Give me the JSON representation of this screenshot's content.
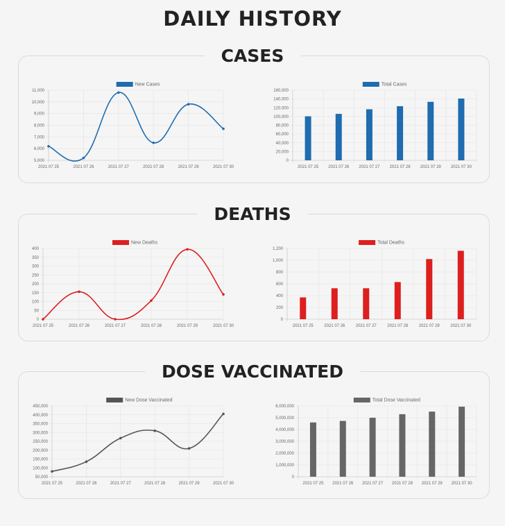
{
  "page_title": "DAILY HISTORY",
  "sections": [
    {
      "title": "CASES",
      "charts": [
        {
          "type": "line",
          "categories": [
            "2021 07 25",
            "2021 07 26",
            "2021 07 27",
            "2021 07 28",
            "2021 07 29",
            "2021 07 30"
          ],
          "series": [
            {
              "name": "New Cases",
              "values": [
                6200,
                5200,
                10800,
                6500,
                9800,
                7700
              ]
            }
          ],
          "ylim": [
            5000,
            11000
          ],
          "yticks": [
            {
              "v": 5000,
              "label": "5,000"
            },
            {
              "v": 6000,
              "label": "6,000"
            },
            {
              "v": 7000,
              "label": "7,000"
            },
            {
              "v": 8000,
              "label": "8,000"
            },
            {
              "v": 9000,
              "label": "9,000"
            },
            {
              "v": 10000,
              "label": "10,000"
            },
            {
              "v": 11000,
              "label": "11,000"
            }
          ],
          "color": "#1f6cb0"
        },
        {
          "type": "bar",
          "categories": [
            "2021 07 25",
            "2021 07 26",
            "2021 07 27",
            "2021 07 28",
            "2021 07 29",
            "2021 07 30"
          ],
          "series": [
            {
              "name": "Total Cases",
              "values": [
                100500,
                106000,
                116500,
                123500,
                133500,
                141000
              ]
            }
          ],
          "ylim": [
            0,
            160000
          ],
          "yticks": [
            {
              "v": 0,
              "label": "0"
            },
            {
              "v": 20000,
              "label": "20,000"
            },
            {
              "v": 40000,
              "label": "40,000"
            },
            {
              "v": 60000,
              "label": "60,000"
            },
            {
              "v": 80000,
              "label": "80,000"
            },
            {
              "v": 100000,
              "label": "100,000"
            },
            {
              "v": 120000,
              "label": "120,000"
            },
            {
              "v": 140000,
              "label": "140,000"
            },
            {
              "v": 160000,
              "label": "160,000"
            }
          ],
          "color": "#1f6cb0"
        }
      ]
    },
    {
      "title": "DEATHS",
      "charts": [
        {
          "type": "line",
          "categories": [
            "2021 07 25",
            "2021 07 26",
            "2021 07 27",
            "2021 07 28",
            "2021 07 29",
            "2021 07 30"
          ],
          "series": [
            {
              "name": "New Deaths",
              "values": [
                0,
                155,
                0,
                105,
                395,
                140
              ]
            }
          ],
          "ylim": [
            0,
            400
          ],
          "yticks": [
            {
              "v": 0,
              "label": "0"
            },
            {
              "v": 50,
              "label": "50"
            },
            {
              "v": 100,
              "label": "100"
            },
            {
              "v": 150,
              "label": "150"
            },
            {
              "v": 200,
              "label": "200"
            },
            {
              "v": 250,
              "label": "250"
            },
            {
              "v": 300,
              "label": "300"
            },
            {
              "v": 350,
              "label": "350"
            },
            {
              "v": 400,
              "label": "400"
            }
          ],
          "color": "#dd1f1f"
        },
        {
          "type": "bar",
          "categories": [
            "2021 07 25",
            "2021 07 26",
            "2021 07 27",
            "2021 07 28",
            "2021 07 29",
            "2021 07 30"
          ],
          "series": [
            {
              "name": "Total Deaths",
              "values": [
                370,
                525,
                525,
                630,
                1020,
                1160
              ]
            }
          ],
          "ylim": [
            0,
            1200
          ],
          "yticks": [
            {
              "v": 0,
              "label": "0"
            },
            {
              "v": 200,
              "label": "200"
            },
            {
              "v": 400,
              "label": "400"
            },
            {
              "v": 600,
              "label": "600"
            },
            {
              "v": 800,
              "label": "800"
            },
            {
              "v": 1000,
              "label": "1,000"
            },
            {
              "v": 1200,
              "label": "1,200"
            }
          ],
          "color": "#dd1f1f"
        }
      ]
    },
    {
      "title": "DOSE VACCINATED",
      "charts": [
        {
          "type": "line",
          "categories": [
            "2021 07 25",
            "2021 07 26",
            "2021 07 27",
            "2021 07 28",
            "2021 07 29",
            "2021 07 30"
          ],
          "series": [
            {
              "name": "New Dose Vaccinated",
              "values": [
                80000,
                135000,
                268000,
                310000,
                210000,
                405000
              ]
            }
          ],
          "ylim": [
            50000,
            450000
          ],
          "yticks": [
            {
              "v": 50000,
              "label": "50,000"
            },
            {
              "v": 100000,
              "label": "100,000"
            },
            {
              "v": 150000,
              "label": "150,000"
            },
            {
              "v": 200000,
              "label": "200,000"
            },
            {
              "v": 250000,
              "label": "250,000"
            },
            {
              "v": 300000,
              "label": "300,000"
            },
            {
              "v": 350000,
              "label": "350,000"
            },
            {
              "v": 400000,
              "label": "400,000"
            },
            {
              "v": 450000,
              "label": "450,000"
            }
          ],
          "color": "#555555"
        },
        {
          "type": "bar",
          "categories": [
            "2021 07 25",
            "2021 07 26",
            "2021 07 27",
            "2021 07 28",
            "2021 07 29",
            "2021 07 30"
          ],
          "series": [
            {
              "name": "Total Dose Vaccinated",
              "values": [
                4600000,
                4730000,
                5000000,
                5300000,
                5520000,
                5940000
              ]
            }
          ],
          "ylim": [
            0,
            6000000
          ],
          "yticks": [
            {
              "v": 0,
              "label": "0"
            },
            {
              "v": 1000000,
              "label": "1,000,000"
            },
            {
              "v": 2000000,
              "label": "2,000,000"
            },
            {
              "v": 3000000,
              "label": "3,000,000"
            },
            {
              "v": 4000000,
              "label": "4,000,000"
            },
            {
              "v": 5000000,
              "label": "5,000,000"
            },
            {
              "v": 6000000,
              "label": "6,000,000"
            }
          ],
          "color": "#666666"
        }
      ]
    }
  ],
  "chart_data": [
    {
      "type": "line",
      "title": "",
      "categories": [
        "2021 07 25",
        "2021 07 26",
        "2021 07 27",
        "2021 07 28",
        "2021 07 29",
        "2021 07 30"
      ],
      "series": [
        {
          "name": "New Cases",
          "values": [
            6200,
            5200,
            10800,
            6500,
            9800,
            7700
          ]
        }
      ],
      "ylim": [
        5000,
        11000
      ],
      "grid": true,
      "legend": "top"
    },
    {
      "type": "bar",
      "title": "",
      "categories": [
        "2021 07 25",
        "2021 07 26",
        "2021 07 27",
        "2021 07 28",
        "2021 07 29",
        "2021 07 30"
      ],
      "series": [
        {
          "name": "Total Cases",
          "values": [
            100500,
            106000,
            116500,
            123500,
            133500,
            141000
          ]
        }
      ],
      "ylim": [
        0,
        160000
      ],
      "grid": true,
      "legend": "top"
    },
    {
      "type": "line",
      "title": "",
      "categories": [
        "2021 07 25",
        "2021 07 26",
        "2021 07 27",
        "2021 07 28",
        "2021 07 29",
        "2021 07 30"
      ],
      "series": [
        {
          "name": "New Deaths",
          "values": [
            0,
            155,
            0,
            105,
            395,
            140
          ]
        }
      ],
      "ylim": [
        0,
        400
      ],
      "grid": true,
      "legend": "top"
    },
    {
      "type": "bar",
      "title": "",
      "categories": [
        "2021 07 25",
        "2021 07 26",
        "2021 07 27",
        "2021 07 28",
        "2021 07 29",
        "2021 07 30"
      ],
      "series": [
        {
          "name": "Total Deaths",
          "values": [
            370,
            525,
            525,
            630,
            1020,
            1160
          ]
        }
      ],
      "ylim": [
        0,
        1200
      ],
      "grid": true,
      "legend": "top"
    },
    {
      "type": "line",
      "title": "",
      "categories": [
        "2021 07 25",
        "2021 07 26",
        "2021 07 27",
        "2021 07 28",
        "2021 07 29",
        "2021 07 30"
      ],
      "series": [
        {
          "name": "New Dose Vaccinated",
          "values": [
            80000,
            135000,
            268000,
            310000,
            210000,
            405000
          ]
        }
      ],
      "ylim": [
        50000,
        450000
      ],
      "grid": true,
      "legend": "top"
    },
    {
      "type": "bar",
      "title": "",
      "categories": [
        "2021 07 25",
        "2021 07 26",
        "2021 07 27",
        "2021 07 28",
        "2021 07 29",
        "2021 07 30"
      ],
      "series": [
        {
          "name": "Total Dose Vaccinated",
          "values": [
            4600000,
            4730000,
            5000000,
            5300000,
            5520000,
            5940000
          ]
        }
      ],
      "ylim": [
        0,
        6000000
      ],
      "grid": true,
      "legend": "top"
    }
  ]
}
